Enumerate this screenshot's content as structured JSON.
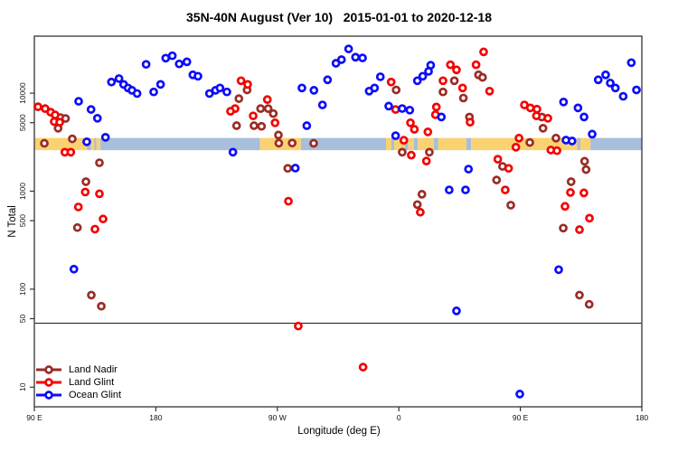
{
  "title": "35N-40N August (Ver 10)   2015-01-01 to 2020-12-18",
  "chart_data": {
    "type": "scatter",
    "title": "35N-40N August (Ver 10)   2015-01-01 to 2020-12-18",
    "xlabel": "Longitude (deg E)",
    "ylabel": "N Total",
    "x_axis": {
      "range_deg": [
        90,
        540
      ],
      "ticks_deg": [
        90,
        180,
        270,
        360,
        450,
        540
      ],
      "tick_labels": [
        "90 E",
        "180",
        "90 W",
        "0",
        "90 E",
        "180"
      ]
    },
    "y_axis": {
      "scale": "log",
      "range": [
        6.3,
        38200
      ],
      "ticks": [
        10,
        50,
        100,
        500,
        1000,
        5000,
        10000
      ],
      "tick_labels": [
        "10",
        "50",
        "100",
        "500",
        "1000",
        "5000",
        "10000"
      ]
    },
    "threshold_line": {
      "value": 45,
      "color": "#1a1a1a"
    },
    "map_band": {
      "top_value": 3490,
      "bottom_value": 2620,
      "land_color": "#FAD272",
      "ocean_color": "#A7BEDC",
      "segments": [
        {
          "from": 90,
          "to": 129,
          "type": "land"
        },
        {
          "from": 129,
          "to": 132,
          "type": "ocean"
        },
        {
          "from": 132,
          "to": 134.5,
          "type": "land"
        },
        {
          "from": 134.5,
          "to": 136,
          "type": "ocean"
        },
        {
          "from": 136,
          "to": 139,
          "type": "land"
        },
        {
          "from": 139,
          "to": 257,
          "type": "ocean"
        },
        {
          "from": 257,
          "to": 287.5,
          "type": "land"
        },
        {
          "from": 287.5,
          "to": 350.5,
          "type": "ocean"
        },
        {
          "from": 350.5,
          "to": 354.5,
          "type": "land"
        },
        {
          "from": 354.5,
          "to": 356.5,
          "type": "ocean"
        },
        {
          "from": 356.5,
          "to": 364.5,
          "type": "land"
        },
        {
          "from": 364.5,
          "to": 367,
          "type": "ocean"
        },
        {
          "from": 367,
          "to": 371,
          "type": "land"
        },
        {
          "from": 371,
          "to": 374,
          "type": "ocean"
        },
        {
          "from": 374,
          "to": 386,
          "type": "land"
        },
        {
          "from": 386,
          "to": 389,
          "type": "ocean"
        },
        {
          "from": 389,
          "to": 410,
          "type": "land"
        },
        {
          "from": 410,
          "to": 413.5,
          "type": "ocean"
        },
        {
          "from": 413.5,
          "to": 492,
          "type": "land"
        },
        {
          "from": 492,
          "to": 494.5,
          "type": "ocean"
        },
        {
          "from": 494.5,
          "to": 502,
          "type": "land"
        },
        {
          "from": 502,
          "to": 540,
          "type": "ocean"
        }
      ]
    },
    "legend": {
      "position": "bottom-left"
    },
    "series": [
      {
        "name": "Land Nadir",
        "color": "#9A2C25",
        "points": [
          [
            109.4,
            5640
          ],
          [
            113.1,
            5520
          ],
          [
            97.4,
            3080
          ],
          [
            118.1,
            3420
          ],
          [
            107.6,
            4390
          ],
          [
            138.2,
            1950
          ],
          [
            128.2,
            1250
          ],
          [
            121.9,
            425
          ],
          [
            132.2,
            87
          ],
          [
            139.6,
            67
          ],
          [
            247.6,
            10800
          ],
          [
            241.5,
            8800
          ],
          [
            257.6,
            6960
          ],
          [
            263.2,
            6960
          ],
          [
            267,
            6190
          ],
          [
            252.7,
            4660
          ],
          [
            258.3,
            4590
          ],
          [
            239.8,
            4660
          ],
          [
            270.8,
            3740
          ],
          [
            271.1,
            3090
          ],
          [
            281,
            3100
          ],
          [
            296.9,
            3080
          ],
          [
            277.7,
            1710
          ],
          [
            358,
            10800
          ],
          [
            362.5,
            2500
          ],
          [
            382.6,
            2500
          ],
          [
            377.1,
            930
          ],
          [
            373.7,
            730
          ],
          [
            401.1,
            13400
          ],
          [
            419,
            15400
          ],
          [
            422,
            14500
          ],
          [
            392.7,
            10300
          ],
          [
            407.8,
            8930
          ],
          [
            412.3,
            5710
          ],
          [
            465.9,
            5710
          ],
          [
            466.8,
            4390
          ],
          [
            457,
            3140
          ],
          [
            476.4,
            3480
          ],
          [
            497.6,
            2020
          ],
          [
            436.8,
            1790
          ],
          [
            432.4,
            1300
          ],
          [
            442.9,
            720
          ],
          [
            498.7,
            1660
          ],
          [
            487.6,
            1250
          ],
          [
            481.8,
            420
          ],
          [
            493.8,
            87
          ],
          [
            501,
            70
          ]
        ]
      },
      {
        "name": "Land Glint",
        "color": "#F50000",
        "points": [
          [
            92.7,
            7270
          ],
          [
            98,
            6960
          ],
          [
            102.1,
            6400
          ],
          [
            105.4,
            6000
          ],
          [
            104.7,
            5130
          ],
          [
            108.8,
            5060
          ],
          [
            112.6,
            2500
          ],
          [
            117,
            2500
          ],
          [
            127.7,
            980
          ],
          [
            138.2,
            940
          ],
          [
            122.6,
            690
          ],
          [
            140.9,
            520
          ],
          [
            134.9,
            410
          ],
          [
            243.1,
            13400
          ],
          [
            248,
            12300
          ],
          [
            238.7,
            6960
          ],
          [
            235.3,
            6540
          ],
          [
            252.1,
            5870
          ],
          [
            262.6,
            8610
          ],
          [
            268.3,
            4990
          ],
          [
            278.2,
            790
          ],
          [
            285.5,
            42
          ],
          [
            354.3,
            13000
          ],
          [
            357.6,
            6820
          ],
          [
            368.6,
            4990
          ],
          [
            371.5,
            4280
          ],
          [
            381.5,
            4030
          ],
          [
            387.1,
            6030
          ],
          [
            363.7,
            3310
          ],
          [
            369.2,
            2330
          ],
          [
            380.4,
            2030
          ],
          [
            375.9,
            610
          ],
          [
            333.5,
            16
          ],
          [
            422.8,
            26400
          ],
          [
            398.2,
            19500
          ],
          [
            417.2,
            19500
          ],
          [
            402.7,
            17300
          ],
          [
            392.7,
            13400
          ],
          [
            407.2,
            11300
          ],
          [
            427.2,
            10500
          ],
          [
            387.8,
            7230
          ],
          [
            412.8,
            5060
          ],
          [
            453,
            7590
          ],
          [
            457.4,
            7080
          ],
          [
            462.3,
            6870
          ],
          [
            461.9,
            5870
          ],
          [
            470.4,
            5550
          ],
          [
            449,
            3480
          ],
          [
            446.7,
            2810
          ],
          [
            472.6,
            2630
          ],
          [
            477.1,
            2590
          ],
          [
            433.3,
            2120
          ],
          [
            441.3,
            1710
          ],
          [
            438.8,
            1030
          ],
          [
            487.1,
            970
          ],
          [
            497.1,
            960
          ],
          [
            483.1,
            700
          ],
          [
            501.2,
            530
          ],
          [
            493.8,
            405
          ]
        ]
      },
      {
        "name": "Ocean Glint",
        "color": "#0D0DFA",
        "points": [
          [
            122.8,
            8260
          ],
          [
            132,
            6820
          ],
          [
            136.7,
            5550
          ],
          [
            128.8,
            3190
          ],
          [
            142.7,
            3550
          ],
          [
            147.1,
            13000
          ],
          [
            152.7,
            14100
          ],
          [
            156.1,
            12300
          ],
          [
            159.4,
            11300
          ],
          [
            162.3,
            10700
          ],
          [
            166.1,
            9930
          ],
          [
            172.8,
            19700
          ],
          [
            178.4,
            10300
          ],
          [
            183.5,
            12300
          ],
          [
            187.3,
            22800
          ],
          [
            192.2,
            24100
          ],
          [
            197.3,
            19900
          ],
          [
            203,
            20900
          ],
          [
            207.4,
            15400
          ],
          [
            211.2,
            14900
          ],
          [
            219.7,
            9930
          ],
          [
            224.2,
            10700
          ],
          [
            227.5,
            11300
          ],
          [
            232.6,
            10300
          ],
          [
            237.1,
            2500
          ],
          [
            119.3,
            160
          ],
          [
            288.2,
            11300
          ],
          [
            297.1,
            10700
          ],
          [
            307.2,
            13700
          ],
          [
            313.4,
            20200
          ],
          [
            317.5,
            22000
          ],
          [
            322.8,
            28300
          ],
          [
            327.9,
            23300
          ],
          [
            333.1,
            22900
          ],
          [
            303.4,
            7590
          ],
          [
            291.8,
            4660
          ],
          [
            283.3,
            1720
          ],
          [
            338,
            10500
          ],
          [
            342,
            11300
          ],
          [
            346.3,
            14700
          ],
          [
            352.5,
            7380
          ],
          [
            362.5,
            6970
          ],
          [
            368.1,
            6720
          ],
          [
            373.7,
            13400
          ],
          [
            377.7,
            14900
          ],
          [
            382,
            16700
          ],
          [
            383.6,
            19300
          ],
          [
            357.6,
            3680
          ],
          [
            391.5,
            5720
          ],
          [
            397.3,
            1030
          ],
          [
            409.4,
            1030
          ],
          [
            411.6,
            1680
          ],
          [
            402.7,
            60
          ],
          [
            449.6,
            8.5
          ],
          [
            482,
            8130
          ],
          [
            492.7,
            7080
          ],
          [
            497.2,
            5720
          ],
          [
            507.7,
            13700
          ],
          [
            513.2,
            15400
          ],
          [
            516.6,
            12700
          ],
          [
            520.4,
            11300
          ],
          [
            526.2,
            9290
          ],
          [
            536,
            10800
          ],
          [
            532.2,
            20500
          ],
          [
            503.2,
            3820
          ],
          [
            483.8,
            3320
          ],
          [
            488.3,
            3250
          ],
          [
            478.4,
            158
          ]
        ]
      }
    ]
  }
}
